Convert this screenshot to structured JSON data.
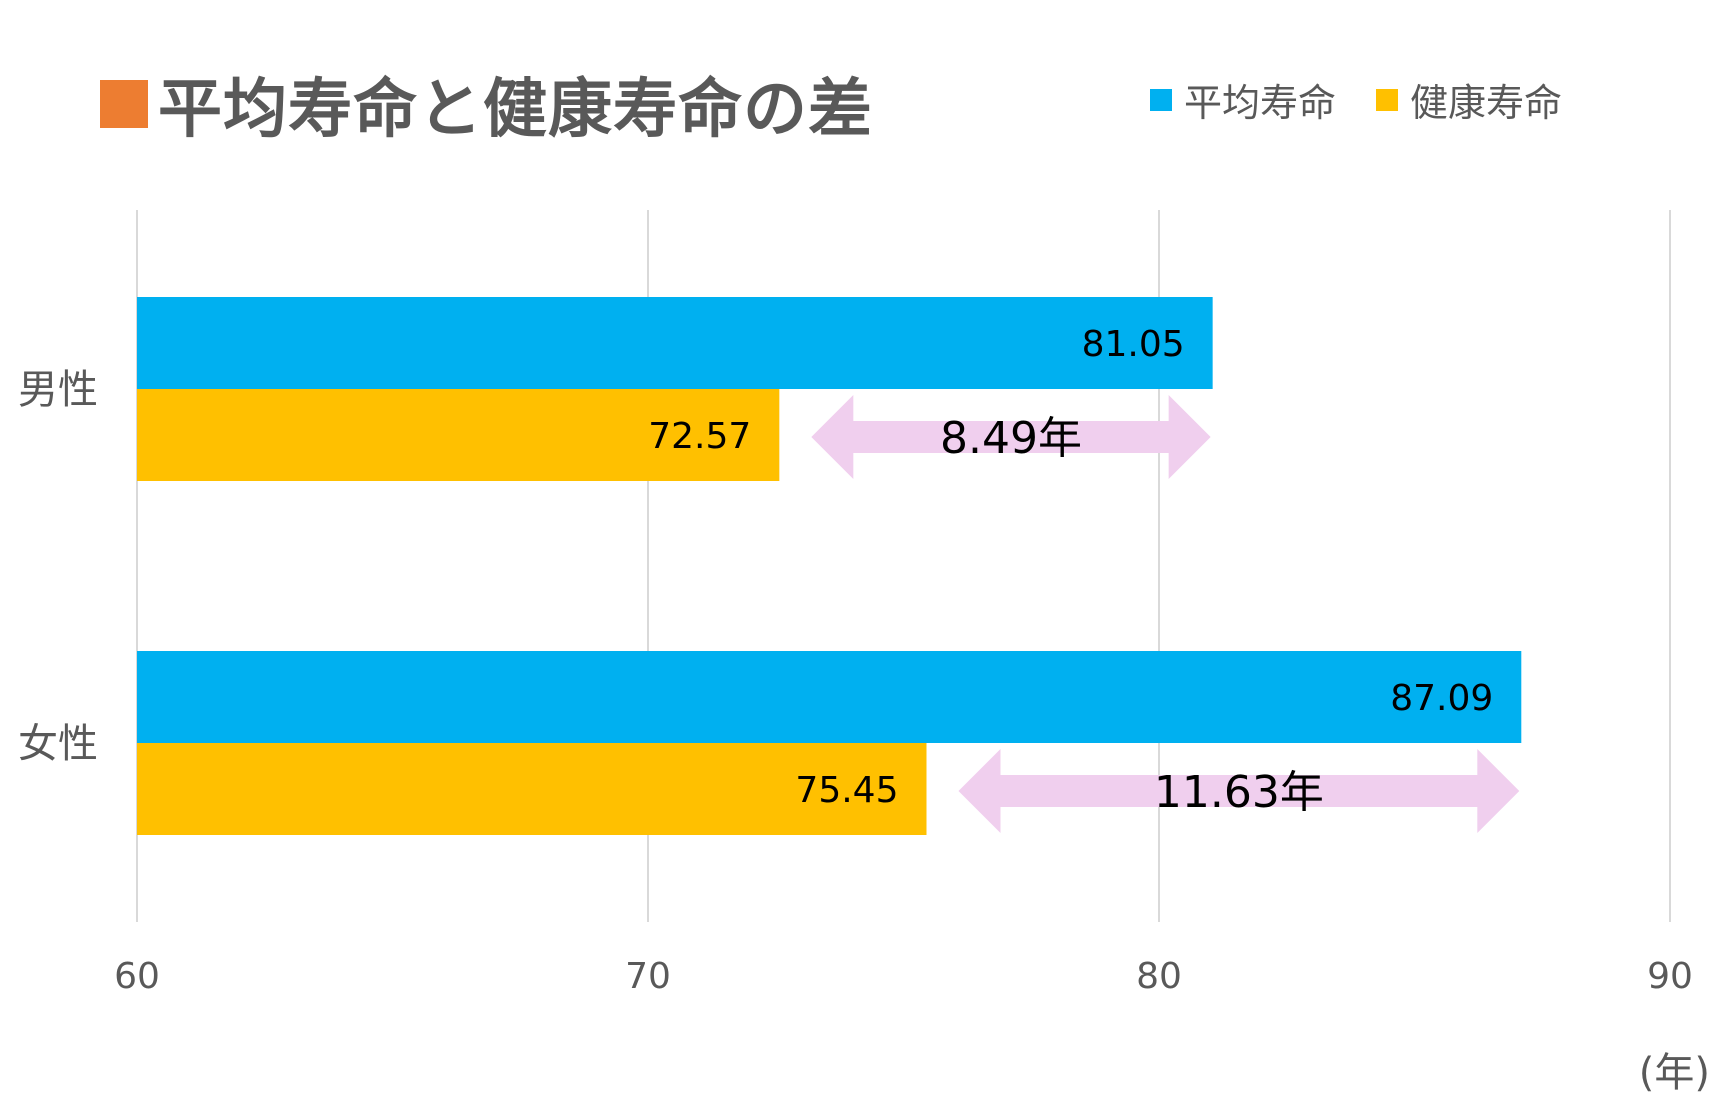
{
  "title": "平均寿命と健康寿命の差",
  "colors": {
    "title_mark": "#ED7D31",
    "avg": "#00B0F0",
    "healthy": "#FFC000",
    "arrow": "#F0CFEE",
    "grid": "#D9D9D9",
    "text": "#595959"
  },
  "legend": [
    {
      "label": "平均寿命",
      "color": "#00B0F0"
    },
    {
      "label": "健康寿命",
      "color": "#FFC000"
    }
  ],
  "axis_unit": "(年)",
  "chart_data": {
    "type": "bar",
    "orientation": "horizontal",
    "title": "平均寿命と健康寿命の差",
    "categories": [
      "男性",
      "女性"
    ],
    "series": [
      {
        "name": "平均寿命",
        "values": [
          81.05,
          87.09
        ]
      },
      {
        "name": "健康寿命",
        "values": [
          72.57,
          75.45
        ]
      }
    ],
    "xlim": [
      60,
      90
    ],
    "xticks": [
      60,
      70,
      80,
      90
    ],
    "xlabel": "(年)",
    "grid": true,
    "legend_position": "top-right",
    "annotations": [
      {
        "category": "男性",
        "label": "8.49年",
        "from": 72.57,
        "to": 81.05
      },
      {
        "category": "女性",
        "label": "11.63年",
        "from": 75.45,
        "to": 87.09
      }
    ]
  }
}
